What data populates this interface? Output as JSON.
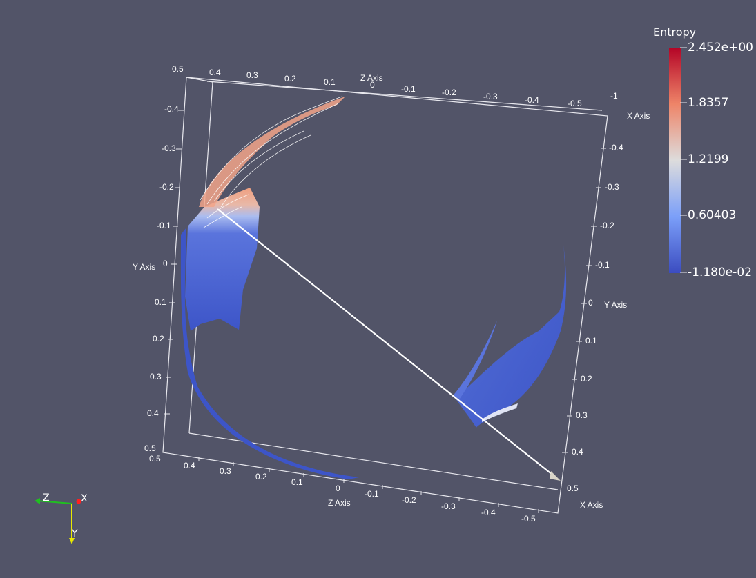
{
  "app": {
    "background": "#525468"
  },
  "axes": {
    "x_title": "X Axis",
    "y_title": "Y Axis",
    "z_title": "Z Axis",
    "top_z_ticks": [
      "0.5",
      "0.4",
      "0.3",
      "0.2",
      "0.1",
      "0"
    ],
    "top_x_ticks": [
      "-0.1",
      "-0.2",
      "-0.3",
      "-0.4",
      "-0.5",
      "-1"
    ],
    "left_y_ticks": [
      "-0.4",
      "-0.3",
      "-0.2",
      "-0.1",
      "0",
      "0.1",
      "0.2",
      "0.3",
      "0.4",
      "0.5"
    ],
    "right_y_ticks": [
      "-0.4",
      "-0.3",
      "-0.2",
      "-0.1",
      "0",
      "0.1",
      "0.2",
      "0.3",
      "0.4",
      "0.5"
    ],
    "bottom_z_ticks": [
      "0.5",
      "0.4",
      "0.3",
      "0.2",
      "0.1",
      "0"
    ],
    "bottom_x_ticks": [
      "-0.1",
      "-0.2",
      "-0.3",
      "-0.4",
      "-0.5"
    ]
  },
  "colorbar": {
    "title": "Entropy",
    "max_label": "2.452e+00",
    "labels": [
      "1.8357",
      "1.2199",
      "0.60403"
    ],
    "min_label": "-1.180e-02",
    "range": [
      -0.0118,
      2.452
    ],
    "colors": {
      "high": "#b40426",
      "mid": "#dddcdc",
      "low": "#3b4cc0"
    }
  },
  "orientation": {
    "x_label": "X",
    "y_label": "Y",
    "z_label": "Z",
    "colors": {
      "x": "#ff2020",
      "y": "#e8e800",
      "z": "#20c020"
    }
  }
}
